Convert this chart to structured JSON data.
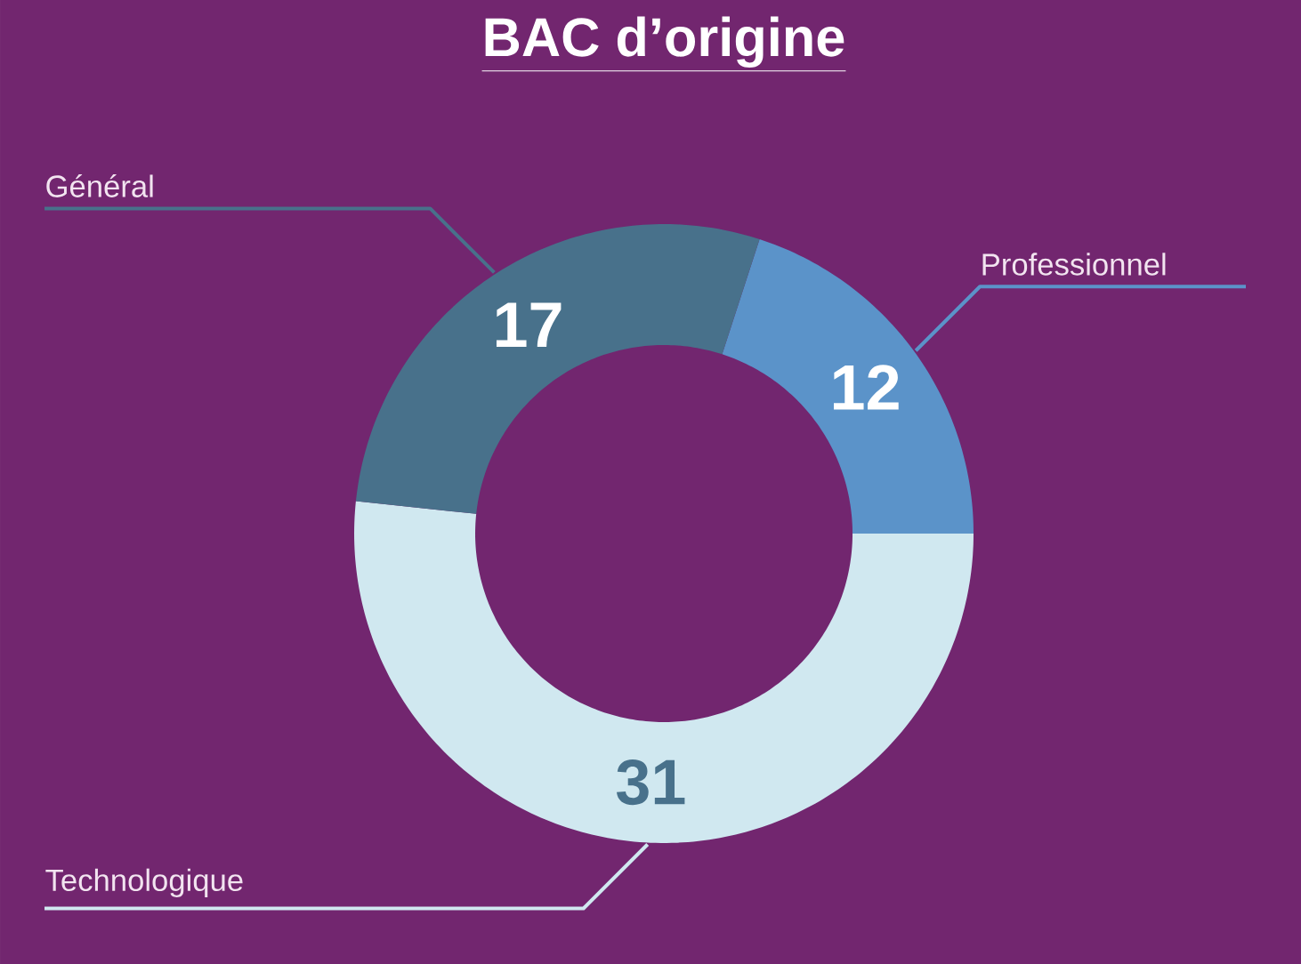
{
  "chart_data": {
    "type": "donut",
    "title": "BAC d’origine",
    "categories": [
      "Professionnel",
      "Technologique",
      "Général"
    ],
    "values": [
      12,
      31,
      17
    ],
    "colors": [
      "#5b93c9",
      "#d0e8f0",
      "#48718b"
    ],
    "data_labels": true
  }
}
